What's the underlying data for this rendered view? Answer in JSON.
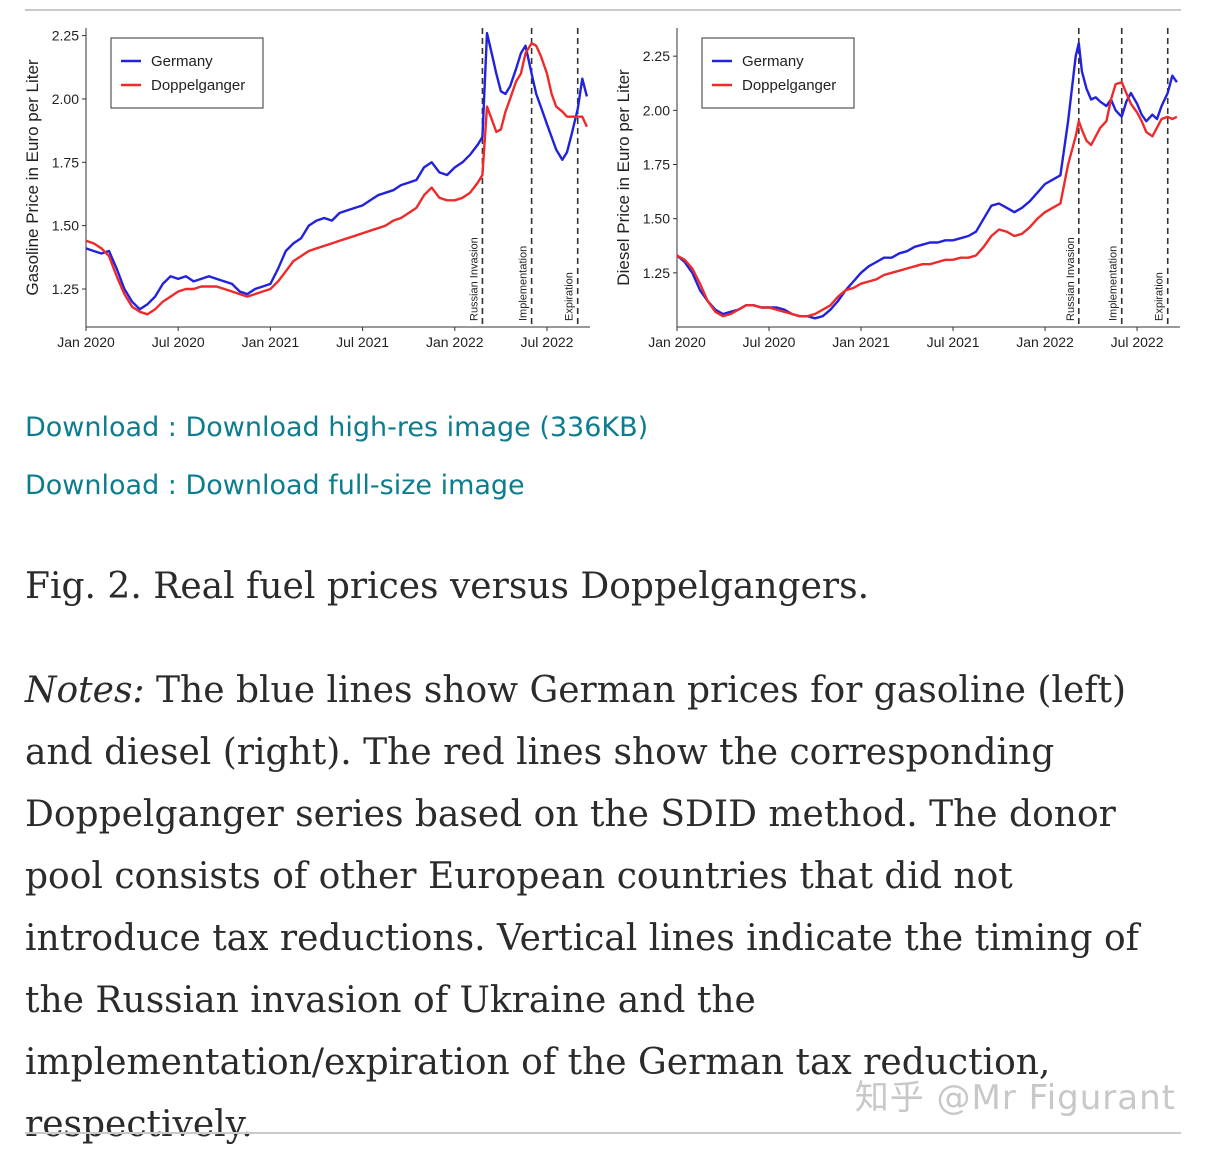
{
  "chart_data": [
    {
      "type": "line",
      "ylabel": "Gasoline Price in Euro per Liter",
      "xlabel": "",
      "x_ticks": [
        "Jan 2020",
        "Jul 2020",
        "Jan 2021",
        "Jul 2021",
        "Jan 2022",
        "Jul 2022"
      ],
      "x_tick_months": [
        0,
        6,
        12,
        18,
        24,
        30
      ],
      "x_range_months": [
        0,
        32.8
      ],
      "yticks": [
        "1.25",
        "1.50",
        "1.75",
        "2.00",
        "2.25"
      ],
      "ylim": [
        1.1,
        2.28
      ],
      "legend": {
        "placement": "top-left",
        "entries": [
          "Germany",
          "Doppelganger"
        ]
      },
      "colors": {
        "Germany": "#2222dd",
        "Doppelganger": "#ee2b2b"
      },
      "events": [
        {
          "label": "Russian Invasion",
          "month": 25.8
        },
        {
          "label": "Implementation",
          "month": 29.0
        },
        {
          "label": "Expiration",
          "month": 32.0
        }
      ],
      "series": [
        {
          "name": "Germany",
          "x": [
            0,
            0.5,
            1,
            1.5,
            2,
            2.5,
            3,
            3.5,
            4,
            4.5,
            5,
            5.5,
            6,
            6.5,
            7,
            7.5,
            8,
            8.5,
            9,
            9.5,
            10,
            10.5,
            11,
            11.5,
            12,
            12.5,
            13,
            13.5,
            14,
            14.5,
            15,
            15.5,
            16,
            16.5,
            17,
            17.5,
            18,
            18.5,
            19,
            19.5,
            20,
            20.5,
            21,
            21.5,
            22,
            22.5,
            23,
            23.5,
            24,
            24.5,
            25,
            25.5,
            25.8,
            26.1,
            26.4,
            26.7,
            27,
            27.3,
            27.6,
            28,
            28.3,
            28.6,
            29,
            29.3,
            29.6,
            30,
            30.3,
            30.6,
            31,
            31.3,
            31.6,
            32,
            32.3,
            32.6
          ],
          "values": [
            1.41,
            1.4,
            1.39,
            1.4,
            1.33,
            1.25,
            1.2,
            1.17,
            1.19,
            1.22,
            1.27,
            1.3,
            1.29,
            1.3,
            1.28,
            1.29,
            1.3,
            1.29,
            1.28,
            1.27,
            1.24,
            1.23,
            1.25,
            1.26,
            1.27,
            1.33,
            1.4,
            1.43,
            1.45,
            1.5,
            1.52,
            1.53,
            1.52,
            1.55,
            1.56,
            1.57,
            1.58,
            1.6,
            1.62,
            1.63,
            1.64,
            1.66,
            1.67,
            1.68,
            1.73,
            1.75,
            1.71,
            1.7,
            1.73,
            1.75,
            1.78,
            1.82,
            1.85,
            2.26,
            2.18,
            2.1,
            2.03,
            2.02,
            2.05,
            2.12,
            2.18,
            2.21,
            2.1,
            2.02,
            1.97,
            1.9,
            1.85,
            1.8,
            1.76,
            1.79,
            1.86,
            1.96,
            2.08,
            2.01
          ]
        },
        {
          "name": "Doppelganger",
          "x": [
            0,
            0.5,
            1,
            1.5,
            2,
            2.5,
            3,
            3.5,
            4,
            4.5,
            5,
            5.5,
            6,
            6.5,
            7,
            7.5,
            8,
            8.5,
            9,
            9.5,
            10,
            10.5,
            11,
            11.5,
            12,
            12.5,
            13,
            13.5,
            14,
            14.5,
            15,
            15.5,
            16,
            16.5,
            17,
            17.5,
            18,
            18.5,
            19,
            19.5,
            20,
            20.5,
            21,
            21.5,
            22,
            22.5,
            23,
            23.5,
            24,
            24.5,
            25,
            25.5,
            25.8,
            26.1,
            26.4,
            26.7,
            27,
            27.3,
            27.6,
            28,
            28.3,
            28.6,
            29,
            29.3,
            29.6,
            30,
            30.3,
            30.6,
            31,
            31.3,
            31.6,
            32,
            32.3,
            32.6
          ],
          "values": [
            1.44,
            1.43,
            1.41,
            1.38,
            1.3,
            1.23,
            1.18,
            1.16,
            1.15,
            1.17,
            1.2,
            1.22,
            1.24,
            1.25,
            1.25,
            1.26,
            1.26,
            1.26,
            1.25,
            1.24,
            1.23,
            1.22,
            1.23,
            1.24,
            1.25,
            1.28,
            1.32,
            1.36,
            1.38,
            1.4,
            1.41,
            1.42,
            1.43,
            1.44,
            1.45,
            1.46,
            1.47,
            1.48,
            1.49,
            1.5,
            1.52,
            1.53,
            1.55,
            1.57,
            1.62,
            1.65,
            1.61,
            1.6,
            1.6,
            1.61,
            1.63,
            1.67,
            1.7,
            1.97,
            1.92,
            1.87,
            1.88,
            1.95,
            2.0,
            2.07,
            2.1,
            2.18,
            2.22,
            2.21,
            2.17,
            2.1,
            2.02,
            1.97,
            1.95,
            1.93,
            1.93,
            1.93,
            1.93,
            1.89
          ]
        }
      ]
    },
    {
      "type": "line",
      "ylabel": "Diesel Price in Euro per Liter",
      "xlabel": "",
      "x_ticks": [
        "Jan 2020",
        "Jul 2020",
        "Jan 2021",
        "Jul 2021",
        "Jan 2022",
        "Jul 2022"
      ],
      "x_tick_months": [
        0,
        6,
        12,
        18,
        24,
        30
      ],
      "x_range_months": [
        0,
        32.8
      ],
      "yticks": [
        "1.25",
        "1.50",
        "1.75",
        "2.00",
        "2.25"
      ],
      "ylim": [
        1.0,
        2.38
      ],
      "legend": {
        "placement": "top-left",
        "entries": [
          "Germany",
          "Doppelganger"
        ]
      },
      "colors": {
        "Germany": "#2222dd",
        "Doppelganger": "#ee2b2b"
      },
      "events": [
        {
          "label": "Russian Invasion",
          "month": 26.2
        },
        {
          "label": "Implementation",
          "month": 29.0
        },
        {
          "label": "Expiration",
          "month": 32.0
        }
      ],
      "series": [
        {
          "name": "Germany",
          "x": [
            0,
            0.5,
            1,
            1.5,
            2,
            2.5,
            3,
            3.5,
            4,
            4.5,
            5,
            5.5,
            6,
            6.5,
            7,
            7.5,
            8,
            8.5,
            9,
            9.5,
            10,
            10.5,
            11,
            11.5,
            12,
            12.5,
            13,
            13.5,
            14,
            14.5,
            15,
            15.5,
            16,
            16.5,
            17,
            17.5,
            18,
            18.5,
            19,
            19.5,
            20,
            20.5,
            21,
            21.5,
            22,
            22.5,
            23,
            23.5,
            24,
            24.5,
            25,
            25.5,
            26,
            26.2,
            26.4,
            26.7,
            27,
            27.3,
            27.6,
            28,
            28.3,
            28.6,
            29,
            29.3,
            29.6,
            30,
            30.3,
            30.6,
            31,
            31.3,
            31.6,
            32,
            32.3,
            32.6
          ],
          "values": [
            1.33,
            1.3,
            1.25,
            1.17,
            1.12,
            1.08,
            1.06,
            1.07,
            1.08,
            1.1,
            1.1,
            1.09,
            1.09,
            1.09,
            1.08,
            1.06,
            1.05,
            1.05,
            1.04,
            1.05,
            1.08,
            1.12,
            1.17,
            1.21,
            1.25,
            1.28,
            1.3,
            1.32,
            1.32,
            1.34,
            1.35,
            1.37,
            1.38,
            1.39,
            1.39,
            1.4,
            1.4,
            1.41,
            1.42,
            1.44,
            1.5,
            1.56,
            1.57,
            1.55,
            1.53,
            1.55,
            1.58,
            1.62,
            1.66,
            1.68,
            1.7,
            1.95,
            2.25,
            2.31,
            2.18,
            2.1,
            2.05,
            2.06,
            2.04,
            2.02,
            2.05,
            2.0,
            1.97,
            2.04,
            2.08,
            2.03,
            1.98,
            1.95,
            1.98,
            1.96,
            2.02,
            2.08,
            2.16,
            2.13
          ]
        },
        {
          "name": "Doppelganger",
          "x": [
            0,
            0.5,
            1,
            1.5,
            2,
            2.5,
            3,
            3.5,
            4,
            4.5,
            5,
            5.5,
            6,
            6.5,
            7,
            7.5,
            8,
            8.5,
            9,
            9.5,
            10,
            10.5,
            11,
            11.5,
            12,
            12.5,
            13,
            13.5,
            14,
            14.5,
            15,
            15.5,
            16,
            16.5,
            17,
            17.5,
            18,
            18.5,
            19,
            19.5,
            20,
            20.5,
            21,
            21.5,
            22,
            22.5,
            23,
            23.5,
            24,
            24.5,
            25,
            25.5,
            26,
            26.2,
            26.4,
            26.7,
            27,
            27.3,
            27.6,
            28,
            28.3,
            28.6,
            29,
            29.3,
            29.6,
            30,
            30.3,
            30.6,
            31,
            31.3,
            31.6,
            32,
            32.3,
            32.6
          ],
          "values": [
            1.33,
            1.31,
            1.27,
            1.2,
            1.12,
            1.07,
            1.05,
            1.06,
            1.08,
            1.1,
            1.1,
            1.09,
            1.09,
            1.08,
            1.07,
            1.06,
            1.05,
            1.05,
            1.06,
            1.08,
            1.1,
            1.14,
            1.17,
            1.18,
            1.2,
            1.21,
            1.22,
            1.24,
            1.25,
            1.26,
            1.27,
            1.28,
            1.29,
            1.29,
            1.3,
            1.31,
            1.31,
            1.32,
            1.32,
            1.33,
            1.37,
            1.42,
            1.45,
            1.44,
            1.42,
            1.43,
            1.46,
            1.5,
            1.53,
            1.55,
            1.57,
            1.75,
            1.88,
            1.95,
            1.91,
            1.86,
            1.84,
            1.88,
            1.92,
            1.95,
            2.05,
            2.12,
            2.13,
            2.08,
            2.03,
            1.99,
            1.95,
            1.9,
            1.88,
            1.92,
            1.96,
            1.97,
            1.96,
            1.97
          ]
        }
      ]
    }
  ],
  "links": {
    "hi_res_prefix": "Download : ",
    "hi_res_label": "Download high-res image (336KB)",
    "full_prefix": "Download : ",
    "full_label": "Download full-size image"
  },
  "caption": {
    "title": "Fig. 2. Real fuel prices versus Doppelgangers."
  },
  "notes": {
    "label": "Notes:",
    "text": " The blue lines show German prices for gasoline (left) and diesel (right). The red lines show the corresponding Doppelganger series based on the SDID method. The donor pool consists of other European countries that did not introduce tax reductions. Vertical lines indicate the timing of the Russian invasion of Ukraine and the implementation/expiration of the German tax reduction, respectively."
  },
  "watermark": "知乎 @Mr Figurant"
}
